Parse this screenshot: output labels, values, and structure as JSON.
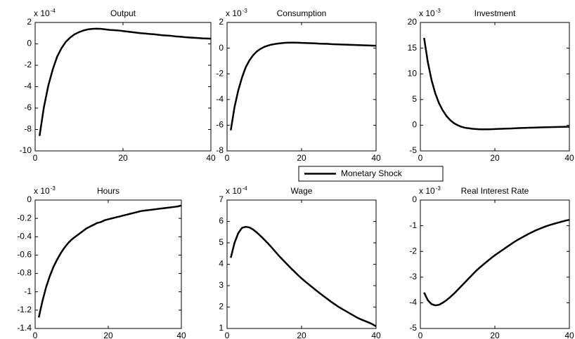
{
  "chart_data": [
    {
      "type": "line",
      "title": "Output",
      "multiplier": {
        "base": "x 10",
        "exponent": "-4"
      },
      "x": [
        1,
        2,
        3,
        4,
        5,
        6,
        7,
        8,
        9,
        10,
        11,
        12,
        13,
        14,
        15,
        16,
        17,
        18,
        19,
        20,
        21,
        22,
        23,
        24,
        25,
        26,
        27,
        28,
        29,
        30,
        31,
        32,
        33,
        34,
        35,
        36,
        37,
        38,
        39,
        40
      ],
      "series": [
        {
          "color": "#000000",
          "values": [
            -8.6,
            -5.9,
            -3.9,
            -2.4,
            -1.2,
            -0.4,
            0.2,
            0.6,
            0.9,
            1.1,
            1.25,
            1.35,
            1.4,
            1.42,
            1.4,
            1.35,
            1.3,
            1.28,
            1.25,
            1.2,
            1.15,
            1.1,
            1.05,
            1.0,
            0.97,
            0.93,
            0.9,
            0.85,
            0.8,
            0.78,
            0.75,
            0.7,
            0.67,
            0.63,
            0.6,
            0.57,
            0.55,
            0.52,
            0.5,
            0.48
          ]
        }
      ],
      "xlim": [
        0,
        40
      ],
      "ylim": [
        -10,
        2
      ],
      "xticks": [
        0,
        20,
        40
      ],
      "yticks": [
        -10,
        -8,
        -6,
        -4,
        -2,
        0,
        2
      ]
    },
    {
      "type": "line",
      "title": "Consumption",
      "multiplier": {
        "base": "x 10",
        "exponent": "-3"
      },
      "x": [
        1,
        2,
        3,
        4,
        5,
        6,
        7,
        8,
        9,
        10,
        11,
        12,
        13,
        14,
        15,
        16,
        17,
        18,
        19,
        20,
        21,
        22,
        23,
        24,
        25,
        26,
        27,
        28,
        29,
        30,
        31,
        32,
        33,
        34,
        35,
        36,
        37,
        38,
        39,
        40
      ],
      "series": [
        {
          "color": "#000000",
          "values": [
            -6.4,
            -4.6,
            -3.3,
            -2.3,
            -1.5,
            -0.95,
            -0.55,
            -0.25,
            -0.05,
            0.1,
            0.2,
            0.28,
            0.33,
            0.37,
            0.4,
            0.42,
            0.43,
            0.43,
            0.42,
            0.41,
            0.4,
            0.39,
            0.38,
            0.37,
            0.35,
            0.34,
            0.33,
            0.31,
            0.3,
            0.29,
            0.28,
            0.27,
            0.26,
            0.25,
            0.24,
            0.23,
            0.22,
            0.21,
            0.2,
            0.19
          ]
        }
      ],
      "xlim": [
        0,
        40
      ],
      "ylim": [
        -8,
        2
      ],
      "xticks": [
        0,
        20,
        40
      ],
      "yticks": [
        -8,
        -6,
        -4,
        -2,
        0,
        2
      ]
    },
    {
      "type": "line",
      "title": "Investment",
      "multiplier": {
        "base": "x 10",
        "exponent": "-3"
      },
      "x": [
        1,
        2,
        3,
        4,
        5,
        6,
        7,
        8,
        9,
        10,
        11,
        12,
        13,
        14,
        15,
        16,
        17,
        18,
        19,
        20,
        21,
        22,
        23,
        24,
        25,
        26,
        27,
        28,
        29,
        30,
        31,
        32,
        33,
        34,
        35,
        36,
        37,
        38,
        39,
        40
      ],
      "series": [
        {
          "color": "#000000",
          "values": [
            17,
            12.3,
            8.8,
            6.2,
            4.3,
            2.9,
            1.8,
            1.0,
            0.4,
            0,
            -0.3,
            -0.5,
            -0.6,
            -0.7,
            -0.75,
            -0.8,
            -0.8,
            -0.8,
            -0.78,
            -0.75,
            -0.72,
            -0.7,
            -0.67,
            -0.64,
            -0.61,
            -0.58,
            -0.55,
            -0.52,
            -0.5,
            -0.47,
            -0.45,
            -0.43,
            -0.41,
            -0.39,
            -0.37,
            -0.35,
            -0.34,
            -0.32,
            -0.31,
            -0.3
          ]
        }
      ],
      "xlim": [
        0,
        40
      ],
      "ylim": [
        -5,
        20
      ],
      "xticks": [
        0,
        20,
        40
      ],
      "yticks": [
        -5,
        0,
        5,
        10,
        15,
        20
      ]
    },
    {
      "type": "line",
      "title": "Hours",
      "multiplier": {
        "base": "x 10",
        "exponent": "-3"
      },
      "x": [
        1,
        2,
        3,
        4,
        5,
        6,
        7,
        8,
        9,
        10,
        11,
        12,
        13,
        14,
        15,
        16,
        17,
        18,
        19,
        20,
        21,
        22,
        23,
        24,
        25,
        26,
        27,
        28,
        29,
        30,
        31,
        32,
        33,
        34,
        35,
        36,
        37,
        38,
        39,
        40
      ],
      "series": [
        {
          "color": "#000000",
          "values": [
            -1.28,
            -1.1,
            -0.95,
            -0.83,
            -0.73,
            -0.65,
            -0.58,
            -0.52,
            -0.47,
            -0.43,
            -0.4,
            -0.37,
            -0.34,
            -0.31,
            -0.29,
            -0.27,
            -0.25,
            -0.24,
            -0.22,
            -0.21,
            -0.2,
            -0.19,
            -0.18,
            -0.17,
            -0.16,
            -0.15,
            -0.14,
            -0.13,
            -0.12,
            -0.115,
            -0.11,
            -0.105,
            -0.1,
            -0.095,
            -0.09,
            -0.085,
            -0.08,
            -0.075,
            -0.07,
            -0.06
          ]
        }
      ],
      "xlim": [
        0,
        40
      ],
      "ylim": [
        -1.4,
        0
      ],
      "xticks": [
        0,
        20,
        40
      ],
      "yticks": [
        -1.4,
        -1.2,
        -1,
        -0.8,
        -0.6,
        -0.4,
        -0.2,
        0
      ]
    },
    {
      "type": "line",
      "title": "Wage",
      "multiplier": {
        "base": "x 10",
        "exponent": "-4"
      },
      "x": [
        1,
        2,
        3,
        4,
        5,
        6,
        7,
        8,
        9,
        10,
        11,
        12,
        13,
        14,
        15,
        16,
        17,
        18,
        19,
        20,
        21,
        22,
        23,
        24,
        25,
        26,
        27,
        28,
        29,
        30,
        31,
        32,
        33,
        34,
        35,
        36,
        37,
        38,
        39,
        40
      ],
      "series": [
        {
          "color": "#000000",
          "values": [
            4.3,
            5.0,
            5.45,
            5.7,
            5.75,
            5.72,
            5.62,
            5.48,
            5.32,
            5.15,
            4.97,
            4.78,
            4.58,
            4.38,
            4.2,
            4.02,
            3.84,
            3.67,
            3.5,
            3.34,
            3.19,
            3.05,
            2.91,
            2.77,
            2.63,
            2.5,
            2.37,
            2.24,
            2.12,
            2.0,
            1.9,
            1.8,
            1.7,
            1.6,
            1.5,
            1.42,
            1.35,
            1.28,
            1.2,
            1.1
          ]
        }
      ],
      "xlim": [
        0,
        40
      ],
      "ylim": [
        1,
        7
      ],
      "xticks": [
        0,
        20,
        40
      ],
      "yticks": [
        1,
        2,
        3,
        4,
        5,
        6,
        7
      ]
    },
    {
      "type": "line",
      "title": "Real Interest Rate",
      "multiplier": {
        "base": "x 10",
        "exponent": "-3"
      },
      "x": [
        1,
        2,
        3,
        4,
        5,
        6,
        7,
        8,
        9,
        10,
        11,
        12,
        13,
        14,
        15,
        16,
        17,
        18,
        19,
        20,
        21,
        22,
        23,
        24,
        25,
        26,
        27,
        28,
        29,
        30,
        31,
        32,
        33,
        34,
        35,
        36,
        37,
        38,
        39,
        40
      ],
      "series": [
        {
          "color": "#000000",
          "values": [
            -3.6,
            -3.9,
            -4.05,
            -4.1,
            -4.08,
            -4.0,
            -3.9,
            -3.78,
            -3.65,
            -3.5,
            -3.35,
            -3.2,
            -3.05,
            -2.9,
            -2.75,
            -2.62,
            -2.5,
            -2.38,
            -2.26,
            -2.15,
            -2.05,
            -1.95,
            -1.85,
            -1.75,
            -1.65,
            -1.56,
            -1.48,
            -1.4,
            -1.32,
            -1.25,
            -1.18,
            -1.12,
            -1.06,
            -1.01,
            -0.96,
            -0.92,
            -0.88,
            -0.84,
            -0.8,
            -0.77
          ]
        }
      ],
      "xlim": [
        0,
        40
      ],
      "ylim": [
        -5,
        0
      ],
      "xticks": [
        0,
        20,
        40
      ],
      "yticks": [
        -5,
        -4,
        -3,
        -2,
        -1,
        0
      ]
    }
  ],
  "legend": "Monetary Shock"
}
